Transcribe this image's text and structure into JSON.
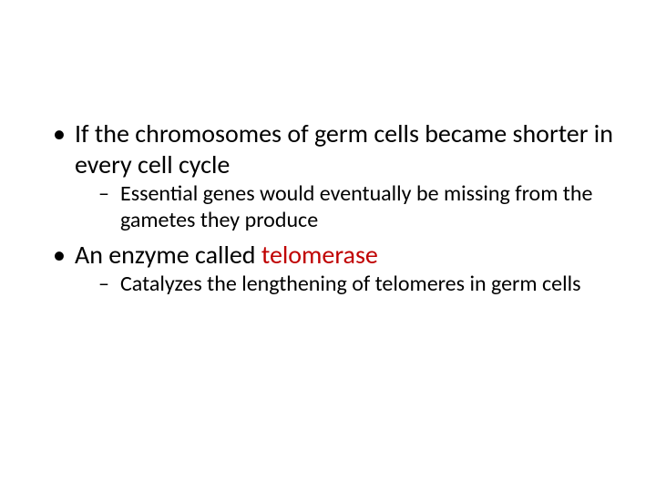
{
  "slide": {
    "background_color": "#ffffff",
    "text_color": "#000000",
    "highlight_color": "#c00000",
    "font_family": "Calibri",
    "bullets": [
      {
        "text": "If the chromosomes of germ cells became shorter in every cell cycle",
        "fontsize": 28,
        "sub": [
          {
            "text": "Essential genes would eventually be missing from the gametes they produce",
            "fontsize": 24
          }
        ]
      },
      {
        "text_before": "An enzyme called ",
        "highlight": "telomerase",
        "fontsize": 28,
        "sub": [
          {
            "text": "Catalyzes the lengthening of telomeres in germ cells",
            "fontsize": 24
          }
        ]
      }
    ]
  }
}
